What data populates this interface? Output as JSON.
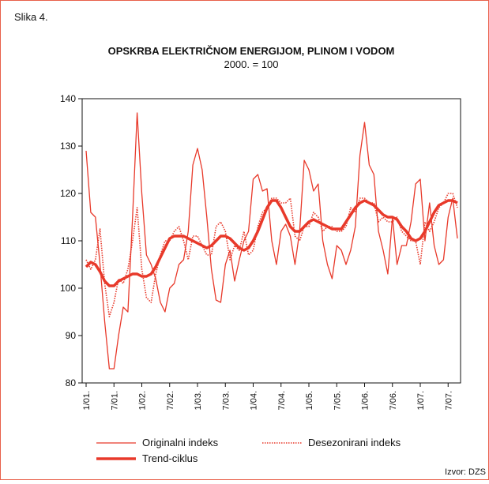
{
  "chart_data": {
    "type": "line",
    "label": "Slika 4.",
    "title": "OPSKRBA ELEKTRIČNOM ENERGIJOM, PLINOM I VODOM",
    "subtitle": "2000. = 100",
    "source": "Izvor: DZS",
    "categories": [
      "1/01.",
      null,
      null,
      null,
      null,
      null,
      "7/01.",
      null,
      null,
      null,
      null,
      null,
      "1/02.",
      null,
      null,
      null,
      null,
      null,
      "7/02.",
      null,
      null,
      null,
      null,
      null,
      "1/03.",
      null,
      null,
      null,
      null,
      null,
      "7/03.",
      null,
      null,
      null,
      null,
      null,
      "1/04.",
      null,
      null,
      null,
      null,
      null,
      "7/04.",
      null,
      null,
      null,
      null,
      null,
      "1/05.",
      null,
      null,
      null,
      null,
      null,
      "7/05.",
      null,
      null,
      null,
      null,
      null,
      "1/06.",
      null,
      null,
      null,
      null,
      null,
      "7/06.",
      null,
      null,
      null,
      null,
      null,
      "1/07.",
      null,
      null,
      null,
      null,
      null,
      "7/07.",
      null,
      null
    ],
    "ylim": [
      80,
      140
    ],
    "yticks": [
      80,
      90,
      100,
      110,
      120,
      130,
      140
    ],
    "series": [
      {
        "name": "Originalni indeks",
        "color": "#e8392a",
        "style": "solid",
        "width": 1.3,
        "values": [
          129,
          116,
          115,
          105,
          93,
          83,
          83,
          90,
          96,
          95,
          115,
          137,
          120,
          107,
          105,
          102,
          97,
          95,
          100,
          101,
          105,
          106,
          112,
          126,
          129.5,
          125,
          115,
          104,
          97.5,
          97,
          105,
          108,
          101.5,
          106,
          110,
          112,
          123,
          124,
          120.5,
          121,
          110,
          105,
          112,
          113.5,
          111,
          105,
          112,
          127,
          125,
          120.5,
          122,
          110,
          105,
          102,
          109,
          108,
          105,
          108,
          113,
          128,
          135,
          126,
          124,
          112,
          108,
          103,
          115,
          105,
          109,
          109,
          114,
          122,
          123,
          110,
          118,
          109,
          105,
          106,
          115,
          119,
          110.5
        ]
      },
      {
        "name": "Desezonirani indeks",
        "color": "#e8392a",
        "style": "dotted",
        "width": 1.6,
        "values": [
          106,
          104,
          106,
          112.5,
          101,
          94,
          97,
          102,
          101,
          104,
          110,
          117,
          104,
          98,
          97,
          103,
          107,
          110,
          110,
          112,
          113,
          110,
          106,
          111,
          111,
          109,
          107,
          107,
          113,
          114,
          112,
          106,
          109,
          108,
          112,
          107,
          108,
          113,
          116,
          117,
          119,
          119,
          118,
          118,
          119,
          111,
          110,
          113,
          113,
          116,
          115,
          112,
          113,
          113,
          112,
          112,
          113,
          117,
          116,
          119,
          119,
          118,
          118,
          114,
          115,
          114,
          114,
          115,
          112,
          111,
          110,
          110,
          105,
          114,
          112,
          114,
          117,
          118,
          120,
          120,
          117
        ]
      },
      {
        "name": "Trend-ciklus",
        "color": "#e8392a",
        "style": "solid",
        "width": 3.5,
        "values": [
          104.5,
          105.5,
          105,
          103.5,
          101.5,
          100.5,
          100.5,
          101.5,
          102,
          102.5,
          103,
          103,
          102.5,
          102.5,
          103,
          104.5,
          106.5,
          108.5,
          110.5,
          111,
          111,
          111,
          110.5,
          110,
          109.5,
          109,
          108.5,
          109,
          110,
          111,
          111,
          110.5,
          109.5,
          108.5,
          108,
          108.5,
          110,
          112,
          114.5,
          117,
          118.5,
          118.5,
          117,
          115,
          113,
          112,
          112,
          113,
          114,
          114.5,
          114,
          113.5,
          113,
          112.5,
          112.5,
          112.5,
          114,
          115.5,
          117,
          118,
          118.5,
          118,
          117.5,
          116.5,
          115.5,
          115,
          115,
          114.5,
          113,
          112,
          110.5,
          110,
          110.5,
          112,
          114,
          116,
          117.5,
          118,
          118.5,
          118.5,
          118
        ]
      }
    ]
  }
}
